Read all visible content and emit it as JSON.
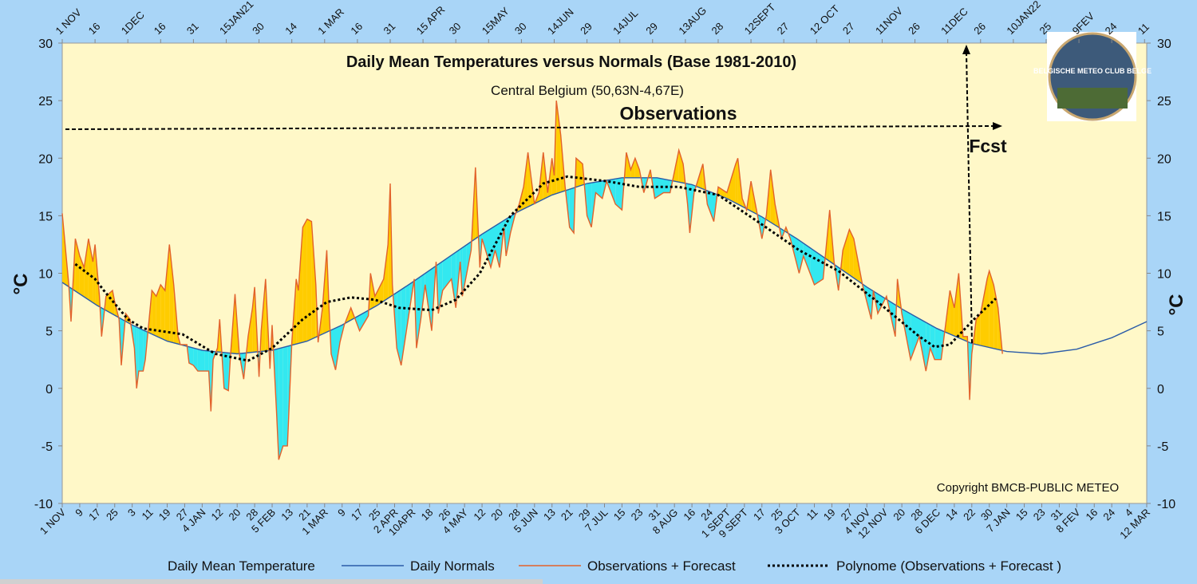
{
  "chart_data": {
    "type": "line",
    "title": "Daily Mean Temperatures versus Normals (Base 1981-2010)",
    "subtitle": "Central Belgium (50,63N-4,67E)",
    "y_label": "°C",
    "y2_label": "°C",
    "annotations": {
      "observations": "Observations",
      "forecast": "Fcst",
      "copyright": "Copyright BMCB-PUBLIC METEO"
    },
    "logo_text": "BELGISCHE METEO CLUB BELGE",
    "xlim": [
      0,
      496
    ],
    "ylim": [
      -10,
      30
    ],
    "y2lim": [
      -10,
      30
    ],
    "yticks": [
      -10,
      -5,
      0,
      5,
      10,
      15,
      20,
      25,
      30
    ],
    "y2ticks": [
      -10,
      -5,
      0,
      5,
      10,
      15,
      20,
      25,
      30
    ],
    "xticks": [
      {
        "value": 0,
        "label": "1 NOV"
      },
      {
        "value": 8,
        "label": "9"
      },
      {
        "value": 16,
        "label": "17"
      },
      {
        "value": 24,
        "label": "25"
      },
      {
        "value": 32,
        "label": "3"
      },
      {
        "value": 40,
        "label": "11"
      },
      {
        "value": 48,
        "label": "19"
      },
      {
        "value": 56,
        "label": "27"
      },
      {
        "value": 64,
        "label": "4 JAN"
      },
      {
        "value": 72,
        "label": "12"
      },
      {
        "value": 80,
        "label": "20"
      },
      {
        "value": 88,
        "label": "28"
      },
      {
        "value": 96,
        "label": "5 FEB"
      },
      {
        "value": 104,
        "label": "13"
      },
      {
        "value": 112,
        "label": "21"
      },
      {
        "value": 120,
        "label": "1 MAR"
      },
      {
        "value": 128,
        "label": "9"
      },
      {
        "value": 136,
        "label": "17"
      },
      {
        "value": 144,
        "label": "25"
      },
      {
        "value": 152,
        "label": "2 APR"
      },
      {
        "value": 160,
        "label": "10APR"
      },
      {
        "value": 168,
        "label": "18"
      },
      {
        "value": 176,
        "label": "26"
      },
      {
        "value": 184,
        "label": "4 MAY"
      },
      {
        "value": 192,
        "label": "12"
      },
      {
        "value": 200,
        "label": "20"
      },
      {
        "value": 208,
        "label": "28"
      },
      {
        "value": 216,
        "label": "5 JUN"
      },
      {
        "value": 224,
        "label": "13"
      },
      {
        "value": 232,
        "label": "21"
      },
      {
        "value": 240,
        "label": "29"
      },
      {
        "value": 248,
        "label": "7 JUL"
      },
      {
        "value": 256,
        "label": "15"
      },
      {
        "value": 264,
        "label": "23"
      },
      {
        "value": 272,
        "label": "31"
      },
      {
        "value": 280,
        "label": "8 AUG"
      },
      {
        "value": 288,
        "label": "16"
      },
      {
        "value": 296,
        "label": "24"
      },
      {
        "value": 304,
        "label": "1 SEPT"
      },
      {
        "value": 312,
        "label": "9 SEPT"
      },
      {
        "value": 320,
        "label": "17"
      },
      {
        "value": 328,
        "label": "25"
      },
      {
        "value": 336,
        "label": "3 OCT"
      },
      {
        "value": 344,
        "label": "11"
      },
      {
        "value": 352,
        "label": "19"
      },
      {
        "value": 360,
        "label": "27"
      },
      {
        "value": 368,
        "label": "4 NOV"
      },
      {
        "value": 376,
        "label": "12 NOV"
      },
      {
        "value": 384,
        "label": "20"
      },
      {
        "value": 392,
        "label": "28"
      },
      {
        "value": 400,
        "label": "6 DEC"
      },
      {
        "value": 408,
        "label": "14"
      },
      {
        "value": 416,
        "label": "22"
      },
      {
        "value": 424,
        "label": "30"
      },
      {
        "value": 432,
        "label": "7 JAN"
      },
      {
        "value": 440,
        "label": "15"
      },
      {
        "value": 448,
        "label": "23"
      },
      {
        "value": 456,
        "label": "31"
      },
      {
        "value": 464,
        "label": "8 FEV"
      },
      {
        "value": 472,
        "label": "16"
      },
      {
        "value": 480,
        "label": "24"
      },
      {
        "value": 488,
        "label": "4"
      },
      {
        "value": 496,
        "label": "12 MAR"
      }
    ],
    "x2ticks": [
      {
        "value": 0,
        "label": "1 NOV"
      },
      {
        "value": 15,
        "label": "16"
      },
      {
        "value": 30,
        "label": "1DEC"
      },
      {
        "value": 45,
        "label": "16"
      },
      {
        "value": 60,
        "label": "31"
      },
      {
        "value": 75,
        "label": "15JAN21"
      },
      {
        "value": 90,
        "label": "30"
      },
      {
        "value": 105,
        "label": "14"
      },
      {
        "value": 120,
        "label": "1 MAR"
      },
      {
        "value": 135,
        "label": "16"
      },
      {
        "value": 150,
        "label": "31"
      },
      {
        "value": 165,
        "label": "15 APR"
      },
      {
        "value": 180,
        "label": "30"
      },
      {
        "value": 195,
        "label": "15MAY"
      },
      {
        "value": 210,
        "label": "30"
      },
      {
        "value": 225,
        "label": "14JUN"
      },
      {
        "value": 240,
        "label": "29"
      },
      {
        "value": 255,
        "label": "14JUL"
      },
      {
        "value": 270,
        "label": "29"
      },
      {
        "value": 285,
        "label": "13AUG"
      },
      {
        "value": 300,
        "label": "28"
      },
      {
        "value": 315,
        "label": "12SEPT"
      },
      {
        "value": 330,
        "label": "27"
      },
      {
        "value": 345,
        "label": "12 OCT"
      },
      {
        "value": 360,
        "label": "27"
      },
      {
        "value": 375,
        "label": "11NOV"
      },
      {
        "value": 390,
        "label": "26"
      },
      {
        "value": 405,
        "label": "11DEC"
      },
      {
        "value": 420,
        "label": "26"
      },
      {
        "value": 435,
        "label": "10JAN22"
      },
      {
        "value": 450,
        "label": "25"
      },
      {
        "value": 465,
        "label": "9FEV"
      },
      {
        "value": 480,
        "label": "24"
      },
      {
        "value": 495,
        "label": "11"
      }
    ],
    "area_fill": {
      "name": "Daily Mean Temperature",
      "above_color": "#ffcc00",
      "below_color": "#33e8f0"
    },
    "series": [
      {
        "name": "Daily Normals",
        "color": "#2b5ca8",
        "x": [
          0,
          16,
          32,
          48,
          64,
          80,
          96,
          112,
          128,
          144,
          160,
          176,
          192,
          208,
          224,
          240,
          256,
          272,
          288,
          304,
          320,
          336,
          352,
          368,
          384,
          400,
          416,
          432,
          448,
          464,
          480,
          496
        ],
        "values": [
          9.2,
          7.2,
          5.5,
          4.1,
          3.3,
          3.0,
          3.3,
          4.1,
          5.5,
          7.2,
          9.2,
          11.3,
          13.4,
          15.3,
          16.8,
          17.8,
          18.3,
          18.3,
          17.7,
          16.5,
          14.9,
          13.0,
          10.9,
          8.8,
          6.9,
          5.2,
          3.9,
          3.2,
          3.0,
          3.4,
          4.4,
          5.8
        ]
      },
      {
        "name": "Observations + Forecast",
        "color": "#e2622c",
        "x": [
          0,
          3,
          4,
          6,
          8,
          10,
          12,
          14,
          15,
          17,
          18,
          20,
          23,
          24,
          26,
          27,
          29,
          31,
          33,
          34,
          35,
          37,
          38,
          41,
          43,
          45,
          47,
          49,
          51,
          53,
          54,
          57,
          58,
          60,
          62,
          65,
          67,
          68,
          69,
          71,
          72,
          74,
          76,
          77,
          79,
          81,
          83,
          85,
          87,
          88,
          90,
          91,
          93,
          95,
          96,
          98,
          99,
          101,
          103,
          105,
          107,
          108,
          110,
          112,
          114,
          116,
          117,
          119,
          121,
          122,
          123,
          125,
          127,
          129,
          132,
          136,
          140,
          141,
          143,
          147,
          149,
          150,
          151,
          153,
          155,
          157,
          159,
          161,
          162,
          164,
          166,
          169,
          171,
          172,
          174,
          178,
          180,
          182,
          183,
          185,
          187,
          189,
          191,
          192,
          196,
          198,
          200,
          202,
          203,
          205,
          207,
          209,
          211,
          213,
          214,
          216,
          218,
          220,
          222,
          224,
          225,
          226,
          228,
          230,
          232,
          234,
          235,
          238,
          240,
          242,
          244,
          247,
          249,
          253,
          256,
          258,
          260,
          262,
          264,
          266,
          269,
          271,
          275,
          278,
          282,
          284,
          286,
          287,
          289,
          293,
          295,
          298,
          300,
          304,
          308,
          309,
          311,
          313,
          315,
          317,
          320,
          322,
          324,
          326,
          329,
          331,
          333,
          337,
          339,
          342,
          344,
          348,
          351,
          353,
          355,
          357,
          360,
          362,
          366,
          370,
          371,
          373,
          377,
          381,
          382,
          384,
          388,
          392,
          395,
          397,
          399,
          402,
          406,
          408,
          410,
          412,
          414,
          415,
          416,
          418,
          420,
          423,
          424,
          426,
          428,
          430
        ],
        "values": [
          15.2,
          9,
          5.8,
          13,
          11.5,
          10.5,
          13,
          11,
          12.5,
          8,
          4.5,
          8,
          8.5,
          7.5,
          6,
          2,
          6.5,
          6,
          3.5,
          0,
          1.5,
          1.5,
          2.5,
          8.5,
          8,
          9,
          8.5,
          12.5,
          9,
          4.5,
          3.8,
          3.8,
          2.2,
          2,
          1.5,
          1.5,
          1.5,
          -2,
          2.5,
          3.5,
          6,
          0,
          -0.2,
          3,
          8.2,
          3,
          0.8,
          4.5,
          7,
          8.8,
          1,
          5,
          9.5,
          1.7,
          5.5,
          -2,
          -6.2,
          -5,
          -5,
          4,
          9.5,
          8.5,
          14,
          14.7,
          14.5,
          9,
          4,
          7,
          12,
          7,
          3,
          1.6,
          4,
          5.5,
          7,
          5,
          6.3,
          10,
          8,
          9.5,
          12.5,
          17.8,
          9,
          3.5,
          2,
          4.5,
          7,
          9.5,
          3.5,
          6,
          9,
          5,
          11,
          6.5,
          8.5,
          9.5,
          7,
          11,
          8,
          10,
          12,
          19.2,
          10.5,
          13,
          10.5,
          12,
          10.5,
          14,
          11.5,
          13.5,
          15,
          16,
          17.5,
          20.5,
          19,
          16,
          17,
          20.5,
          17,
          20,
          18.5,
          25,
          22,
          17.5,
          14,
          13.5,
          20,
          19.5,
          15,
          14,
          17,
          16.5,
          18,
          16,
          15.5,
          20.5,
          19,
          20,
          19,
          17,
          19,
          16.5,
          17,
          17,
          20.7,
          19.5,
          16,
          13.5,
          17,
          19.5,
          16,
          14.5,
          17.5,
          17,
          19.5,
          20,
          16.5,
          15.5,
          18,
          16,
          13,
          15,
          19,
          16,
          13,
          14,
          13,
          10,
          11.5,
          10,
          9,
          9.5,
          15.5,
          11,
          8.5,
          12,
          13.8,
          13,
          9,
          6,
          8.5,
          6.5,
          8,
          4.5,
          9.5,
          6.5,
          2.5,
          4.5,
          1.5,
          3.5,
          2.5,
          2.5,
          8.5,
          7,
          10,
          4.5,
          4.5,
          -1,
          3,
          6,
          6.5,
          9.5,
          10.2,
          9,
          7,
          3
        ]
      },
      {
        "name": "Polynome (Observations + Forecast )",
        "color": "#000000",
        "dashed": true,
        "x": [
          6,
          15,
          19,
          30,
          37,
          55,
          70,
          85,
          96,
          110,
          121,
          132,
          143,
          154,
          169,
          180,
          191,
          205,
          220,
          231,
          249,
          264,
          282,
          300,
          318,
          337,
          355,
          373,
          392,
          399,
          406,
          417,
          427
        ],
        "values": [
          10.8,
          9.5,
          8.5,
          6,
          5.2,
          4.7,
          3,
          2.4,
          3.5,
          6,
          7.5,
          7.9,
          7.7,
          7,
          6.8,
          7.7,
          10,
          15,
          17.8,
          18.4,
          18,
          17.5,
          17.5,
          16.8,
          14.5,
          12,
          10.2,
          7.5,
          4.5,
          3.6,
          3.8,
          6,
          7.8
        ]
      }
    ]
  }
}
